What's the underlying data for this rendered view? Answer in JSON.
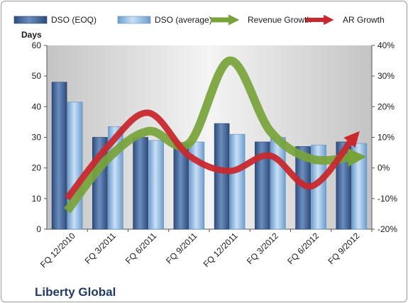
{
  "chart_data": {
    "type": "bar",
    "title": "",
    "company": "Liberty Global",
    "ylabel_left": "Days",
    "ylim_left": [
      0,
      60
    ],
    "yticks_left": [
      "0",
      "10",
      "20",
      "30",
      "40",
      "50",
      "60"
    ],
    "ylim_right": [
      -20,
      40
    ],
    "yticks_right": [
      "-20%",
      "-10%",
      "0%",
      "10%",
      "20%",
      "30%",
      "40%"
    ],
    "categories": [
      "FQ 12/2010",
      "FQ 3/2011",
      "FQ 6/2011",
      "FQ 9/2011",
      "FQ 12/2011",
      "FQ 3/2012",
      "FQ 6/2012",
      "FQ 9/2012"
    ],
    "legend_position": "top",
    "grid": false,
    "series": [
      {
        "name": "DSO (EOQ)",
        "kind": "bar",
        "axis": "left",
        "color": "#4f6f9f",
        "values": [
          48,
          30,
          30,
          28,
          34.5,
          28.5,
          27,
          28.5
        ]
      },
      {
        "name": "DSO (average)",
        "kind": "bar",
        "axis": "left",
        "color": "#9cc3e8",
        "values": [
          41.5,
          33.5,
          29,
          28.5,
          31,
          30,
          27.5,
          28
        ]
      },
      {
        "name": "Revenue Growth",
        "kind": "line",
        "axis": "right",
        "color": "#77a33a",
        "values": [
          -14,
          3,
          12,
          8,
          35,
          12,
          3,
          3.5
        ]
      },
      {
        "name": "AR Growth",
        "kind": "line",
        "axis": "right",
        "color": "#c8282e",
        "values": [
          -10,
          7,
          18,
          4,
          -1,
          4,
          -6,
          9
        ]
      }
    ]
  }
}
